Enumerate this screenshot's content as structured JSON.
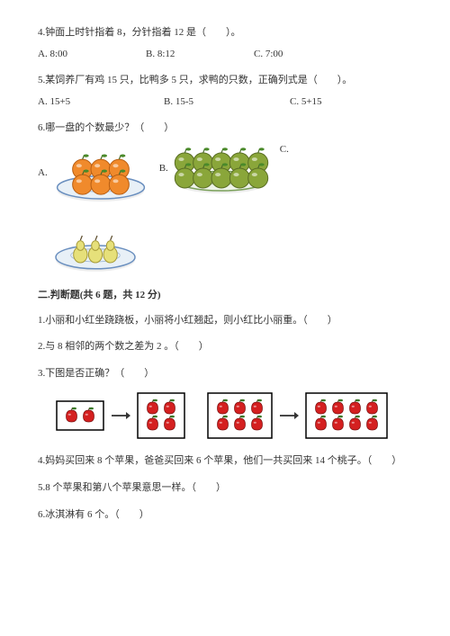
{
  "q4": {
    "text": "4.钟面上时针指着 8，分针指着 12 是（　　）。",
    "opts": {
      "a": "A. 8:00",
      "b": "B. 8:12",
      "c": "C. 7:00"
    }
  },
  "q5": {
    "text": "5.某饲养厂有鸡 15 只，比鸭多 5 只，求鸭的只数，正确列式是（　　）。",
    "opts": {
      "a": "A. 15+5",
      "b": "B. 15-5",
      "c": "C. 5+15"
    }
  },
  "q6": {
    "text": "6.哪一盘的个数最少？（　　）",
    "labels": {
      "a": "A.",
      "b": "B.",
      "c": "C."
    },
    "plateA": {
      "plate_fill": "#e8f0f7",
      "plate_stroke": "#6a8fbf",
      "fruit_fill": "#f08a2c",
      "fruit_stroke": "#b85e12",
      "count": 6,
      "cols": 3
    },
    "plateB": {
      "plate_fill": "#eef4e8",
      "plate_stroke": "#7aa05a",
      "fruit_fill": "#8aa63a",
      "fruit_stroke": "#5a6e24",
      "count": 10,
      "cols": 5
    },
    "plateC": {
      "plate_fill": "#e8f0f7",
      "plate_stroke": "#6a8fbf",
      "fruit_fill": "#e6e07a",
      "fruit_stroke": "#a89c38",
      "count": 3,
      "cols": 3,
      "shape": "pear"
    }
  },
  "section2": {
    "title": "二.判断题(共 6 题，共 12 分)",
    "q1": "1.小丽和小红坐跷跷板，小丽将小红翘起，则小红比小丽重。（　　）",
    "q2": "2.与 8 相邻的两个数之差为 2 。（　　）",
    "q3": "3.下图是否正确？（　　）",
    "q4": "4.妈妈买回来 8 个苹果，爸爸买回来 6 个苹果，他们一共买回来 14 个桃子。（　　）",
    "q5": "5.8 个苹果和第八个苹果意思一样。（　　）",
    "q6": "6.冰淇淋有 6 个。（　　）"
  },
  "apple_diagram": {
    "box_stroke": "#000000",
    "apple_fill": "#d42020",
    "apple_stroke": "#7a0f0f",
    "leaf_fill": "#3a7a2a",
    "boxes": [
      {
        "cols": 2,
        "rows": 1
      },
      {
        "cols": 2,
        "rows": 2
      },
      {
        "cols": 3,
        "rows": 2
      },
      {
        "cols": 4,
        "rows": 2
      }
    ],
    "arrow_color": "#333333"
  }
}
